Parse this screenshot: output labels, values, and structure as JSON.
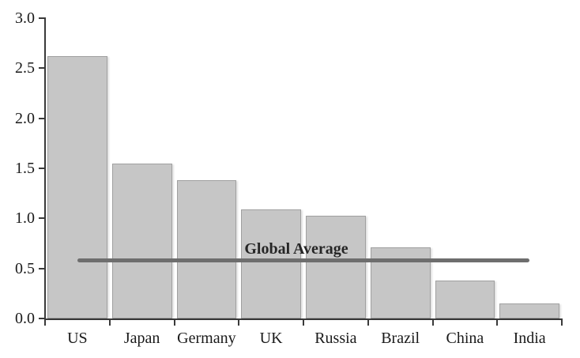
{
  "chart_data": {
    "type": "bar",
    "title": "",
    "xlabel": "",
    "ylabel": "",
    "categories": [
      "US",
      "Japan",
      "Germany",
      "UK",
      "Russia",
      "Brazil",
      "China",
      "India"
    ],
    "values": [
      2.62,
      1.55,
      1.38,
      1.09,
      1.03,
      0.71,
      0.38,
      0.15
    ],
    "ylim": [
      0,
      3.0
    ],
    "ytick_labels": [
      "0.0",
      "0.5",
      "1.0",
      "1.5",
      "2.0",
      "2.5",
      "3.0"
    ],
    "grid": false,
    "legend_position": "none",
    "reference_line": {
      "label": "Global Average",
      "value": 0.58
    },
    "colors": {
      "bar_fill": "#c6c6c6",
      "bar_border": "#a0a0a0",
      "reference_line": "#6e6e6e",
      "axis": "#3a3a3a",
      "text": "#1a1a1a"
    }
  }
}
